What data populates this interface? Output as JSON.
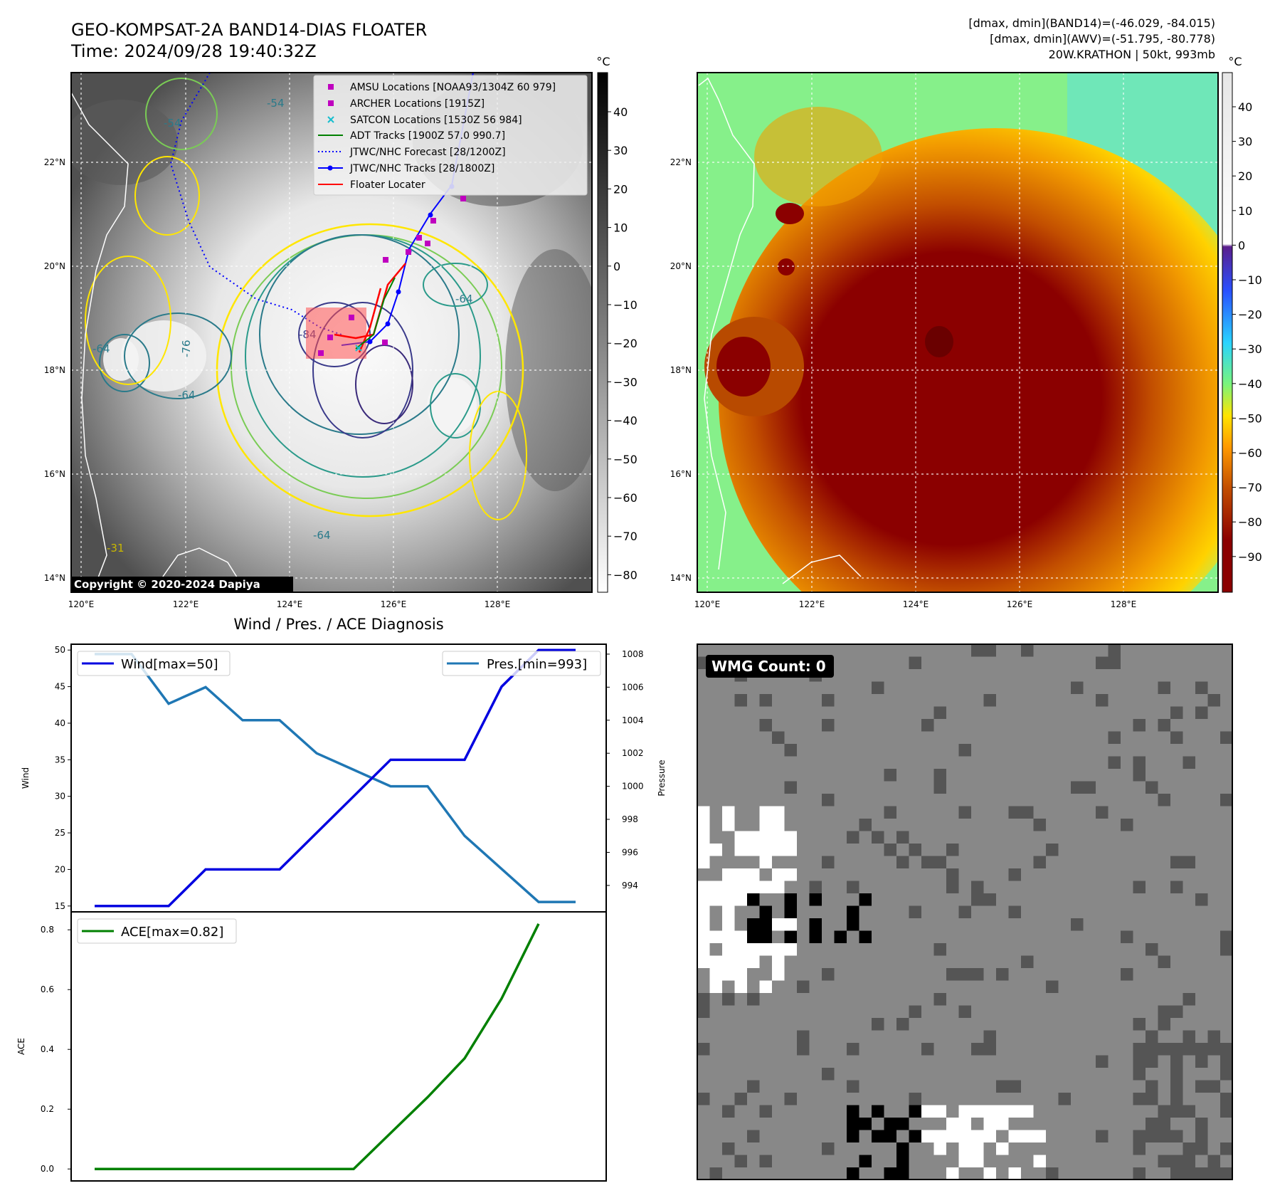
{
  "header": {
    "title_line1": "GEO-KOMPSAT-2A BAND14-DIAS FLOATER",
    "title_line2": "Time: 2024/09/28 19:40:32Z",
    "info_line1": "[dmax, dmin](BAND14)=(-46.029, -84.015)",
    "info_line2": "[dmax, dmin](AWV)=(-51.795, -80.778)",
    "info_line3": "20W.KRATHON | 50kt, 993mb"
  },
  "map": {
    "lon_ticks": [
      "120°E",
      "122°E",
      "124°E",
      "126°E",
      "128°E"
    ],
    "lat_ticks": [
      "22°N",
      "20°N",
      "18°N",
      "16°N",
      "14°N"
    ],
    "copyright": "Copyright © 2020-2024 Dapiya",
    "contour_labels": [
      "-54",
      "-54",
      "-64",
      "-64",
      "-64",
      "-64",
      "-76",
      "-84",
      "-31"
    ],
    "legend": [
      {
        "label": "AMSU Locations [NOAA93/1304Z 60 979]",
        "marker": "square",
        "color": "#bf00bf"
      },
      {
        "label": "ARCHER Locations [1915Z]",
        "marker": "square",
        "color": "#bf00bf"
      },
      {
        "label": "SATCON Locations [1530Z 56 984]",
        "marker": "x",
        "color": "#17becf"
      },
      {
        "label": "ADT Tracks [1900Z 57.0 990.7]",
        "marker": "line",
        "color": "#008000"
      },
      {
        "label": "JTWC/NHC Forecast [28/1200Z]",
        "marker": "dotted",
        "color": "#0000ff"
      },
      {
        "label": "JTWC/NHC Tracks [28/1800Z]",
        "marker": "line-dot",
        "color": "#0000ff"
      },
      {
        "label": "Floater Locater",
        "marker": "line",
        "color": "#ff0000"
      }
    ],
    "colorbar_left": {
      "unit": "°C",
      "ticks": [
        "40",
        "30",
        "20",
        "10",
        "0",
        "−10",
        "−20",
        "−30",
        "−40",
        "−50",
        "−60",
        "−70",
        "−80"
      ]
    },
    "colorbar_right": {
      "unit": "°C",
      "ticks": [
        "40",
        "30",
        "20",
        "10",
        "0",
        "−10",
        "−20",
        "−30",
        "−40",
        "−50",
        "−60",
        "−70",
        "−80",
        "−90"
      ]
    }
  },
  "wmg": {
    "label": "WMG Count: 0"
  },
  "chart_data": [
    {
      "type": "line",
      "title": "Wind / Pres. / ACE Diagnosis",
      "x": [
        0,
        1,
        2,
        3,
        4,
        5,
        6,
        7,
        8,
        9,
        10,
        11,
        12,
        13
      ],
      "series": [
        {
          "name": "Wind[max=50]",
          "axis": "left",
          "color": "#0000e0",
          "values": [
            15,
            15,
            15,
            20,
            20,
            20,
            25,
            30,
            35,
            35,
            35,
            45,
            50,
            50
          ]
        },
        {
          "name": "Pres.[min=993]",
          "axis": "right",
          "color": "#1f77b4",
          "values": [
            1008,
            1008,
            1005,
            1006,
            1004,
            1004,
            1002,
            1001,
            1000,
            1000,
            997,
            995,
            993,
            993
          ]
        }
      ],
      "ylabel": "Wind",
      "ylabel_right": "Pressure",
      "ylim": [
        14.2,
        50.8
      ],
      "ylim_right": [
        992.4,
        1008.6
      ],
      "yticks": [
        15,
        20,
        25,
        30,
        35,
        40,
        45,
        50
      ],
      "yticks_right": [
        994,
        996,
        998,
        1000,
        1002,
        1004,
        1006,
        1008
      ]
    },
    {
      "type": "line",
      "series": [
        {
          "name": "ACE[max=0.82]",
          "color": "#008000",
          "values": [
            0.0,
            0.0,
            0.0,
            0.0,
            0.0,
            0.0,
            0.0,
            0.0,
            0.12,
            0.24,
            0.37,
            0.57,
            0.82
          ]
        }
      ],
      "ylabel": "ACE",
      "ylim": [
        -0.04,
        0.86
      ],
      "yticks": [
        0.0,
        0.2,
        0.4,
        0.6,
        0.8
      ]
    }
  ]
}
